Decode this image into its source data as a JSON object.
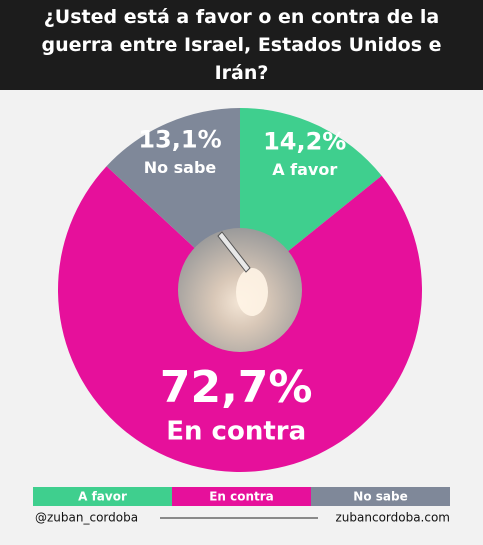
{
  "chart_data": {
    "type": "pie",
    "title": "¿Usted está a favor o en contra de la guerra entre Israel, Estados Unidos e Irán?",
    "categories": [
      "A favor",
      "En contra",
      "No sabe"
    ],
    "values": [
      14.2,
      72.7,
      13.1
    ],
    "value_labels": [
      "14,2%",
      "72,7%",
      "13,1%"
    ],
    "colors": [
      "#3fcf8e",
      "#e6109b",
      "#7f8899"
    ]
  },
  "footer": {
    "handle": "@zuban_cordoba",
    "site": "zubancordoba.com"
  }
}
